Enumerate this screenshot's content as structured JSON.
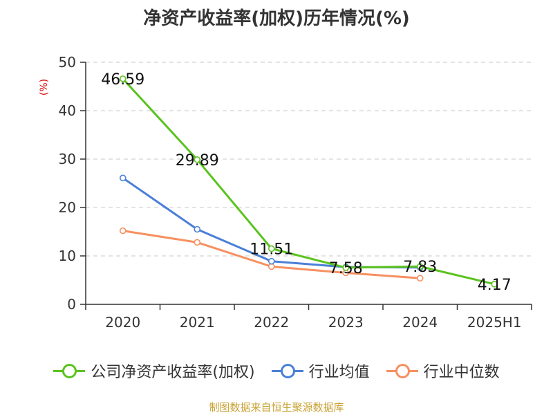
{
  "chart_data": {
    "type": "line",
    "title": "净资产收益率(加权)历年情况(%)",
    "ylabel": "(%)",
    "categories": [
      "2020",
      "2021",
      "2022",
      "2023",
      "2024",
      "2025H1"
    ],
    "ylim": [
      0,
      50
    ],
    "yticks": [
      0,
      10,
      20,
      30,
      40,
      50
    ],
    "grid": true,
    "legend_position": "bottom",
    "series": [
      {
        "name": "公司净资产收益率(加权)",
        "color": "#5ac31e",
        "values": [
          46.59,
          29.89,
          11.51,
          7.58,
          7.83,
          4.17
        ],
        "labels": [
          "46.59",
          "29.89",
          "11.51",
          "7.58",
          "7.83",
          "4.17"
        ]
      },
      {
        "name": "行业均值",
        "color": "#4a7fd8",
        "values": [
          26.1,
          15.5,
          8.9,
          7.7,
          7.6,
          null
        ]
      },
      {
        "name": "行业中位数",
        "color": "#f79060",
        "values": [
          15.2,
          12.8,
          7.8,
          6.5,
          5.4,
          null
        ]
      }
    ]
  },
  "source": "制图数据来自恒生聚源数据库"
}
